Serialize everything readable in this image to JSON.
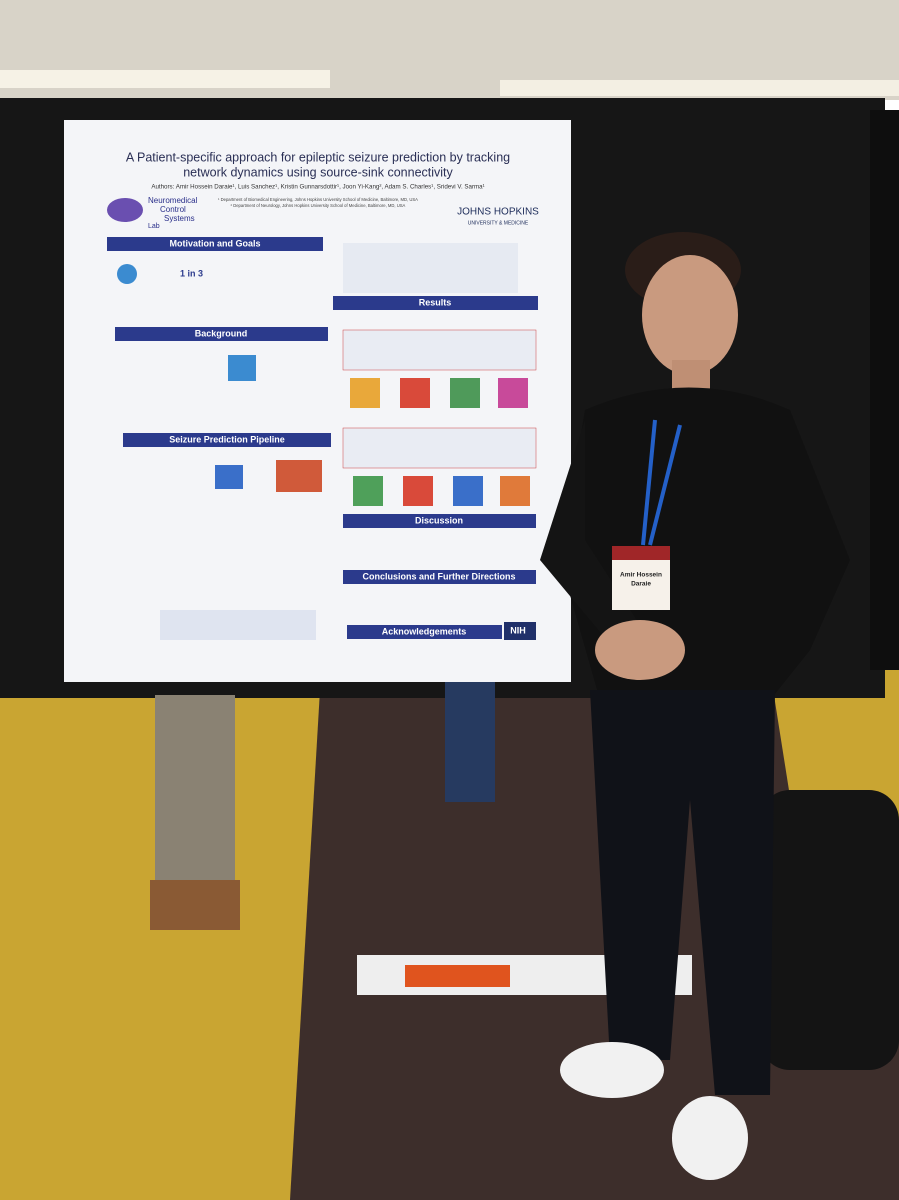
{
  "poster": {
    "title": [
      "A Patient-specific approach for epileptic seizure prediction by tracking",
      "network dynamics using source-sink connectivity"
    ],
    "authors": "Authors: Amir Hossein Daraie¹, Luis Sanchez¹, Kristin Gunnarsdottir¹, Joon Yi-Kang², Adam S. Charles¹, Sridevi V. Sarma¹",
    "affiliations": [
      "¹ Department of Biomedical Engineering, Johns Hopkins University School of Medicine, Baltimore, MD, USA",
      "² Department of Neurology, Johns Hopkins University School of Medicine, Baltimore, MD, USA"
    ],
    "lab": [
      "Neuromedical",
      "Control",
      "Systems",
      "Lab"
    ],
    "institution": "JOHNS HOPKINS",
    "institution_sub": "UNIVERSITY & MEDICINE",
    "stat": "1 in 3",
    "sections": [
      "Motivation and Goals",
      "Background",
      "Seizure Prediction Pipeline",
      "Results",
      "Discussion",
      "Conclusions and Further Directions",
      "Acknowledgements"
    ],
    "funder": "NIH"
  },
  "badge": {
    "name": [
      "Amir Hossein",
      "Daraie"
    ]
  }
}
